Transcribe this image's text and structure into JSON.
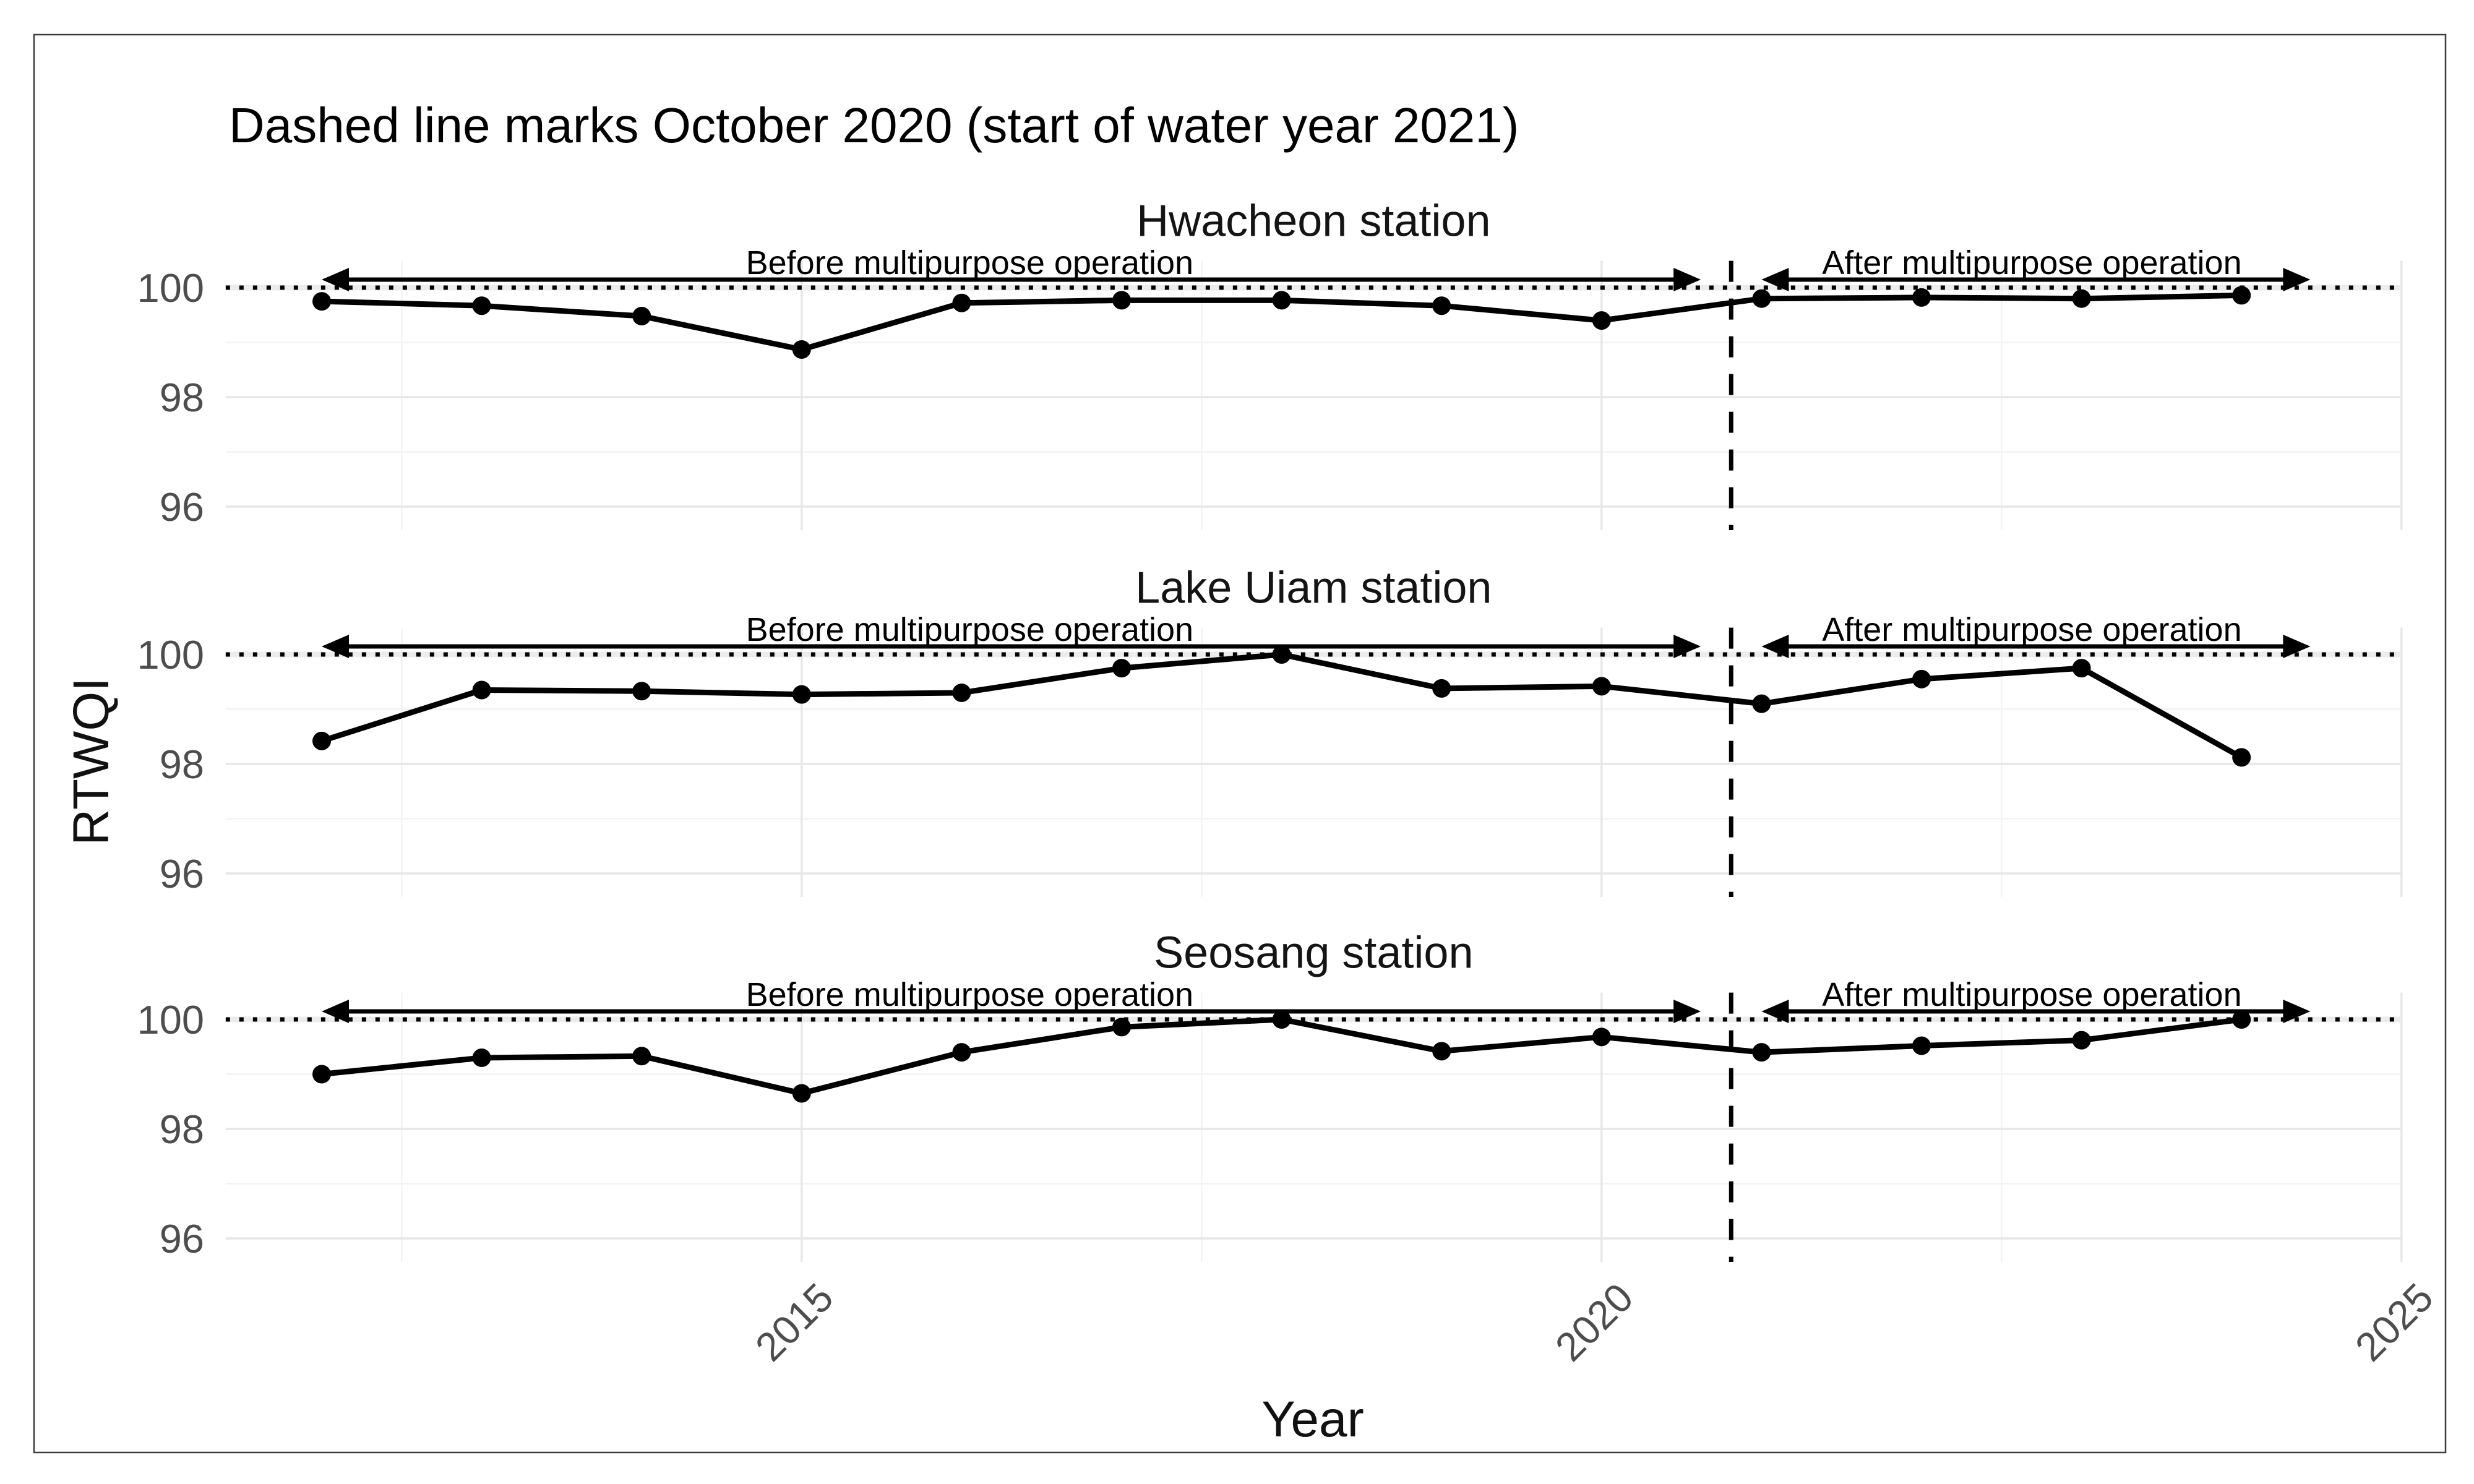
{
  "figure": {
    "title": "Dashed line marks October 2020 (start of water year 2021)",
    "x_axis_title": "Year",
    "y_axis_title": "RTWQI"
  },
  "colors": {
    "background": "#ffffff",
    "series": "#000000",
    "tick_label": "#4d4d4d",
    "grid_major": "#e7e7e7",
    "grid_minor": "#f3f3f3",
    "border": "#3d3d3d"
  },
  "chart_data": {
    "type": "line",
    "title": "Dashed line marks October 2020 (start of water year 2021)",
    "xlabel": "Year",
    "ylabel": "RTWQI",
    "x": [
      2012,
      2013,
      2014,
      2015,
      2016,
      2017,
      2018,
      2019,
      2020,
      2021,
      2022,
      2023,
      2024
    ],
    "x_tick_labels": [
      "2015",
      "2020",
      "2025"
    ],
    "x_ticks": [
      2015,
      2020,
      2025
    ],
    "y_tick_labels": [
      "100",
      "98",
      "96"
    ],
    "y_ticks": [
      100,
      98,
      96
    ],
    "xlim": [
      2011.4,
      2025.0
    ],
    "ylim": [
      95.57,
      100.49
    ],
    "grid": {
      "x_major": [
        2015,
        2020,
        2025
      ],
      "x_minor": [
        2012.5,
        2017.5,
        2022.5
      ],
      "y_major": [
        96,
        98,
        100
      ],
      "y_minor": [
        97,
        99
      ],
      "grid_on": true
    },
    "reference_line_y": 100,
    "dashed_vline_x": 2020.81,
    "panels": [
      {
        "title": "Hwacheon station",
        "values": [
          99.75,
          99.67,
          99.48,
          98.87,
          99.72,
          99.77,
          99.77,
          99.67,
          99.4,
          99.8,
          99.82,
          99.8,
          99.86
        ]
      },
      {
        "title": "Lake Uiam station",
        "values": [
          98.42,
          99.35,
          99.33,
          99.27,
          99.3,
          99.75,
          100.0,
          99.38,
          99.42,
          99.1,
          99.55,
          99.75,
          98.12
        ]
      },
      {
        "title": "Seosang station",
        "values": [
          99.0,
          99.3,
          99.33,
          98.65,
          99.4,
          99.86,
          100.0,
          99.42,
          99.68,
          99.4,
          99.52,
          99.62,
          100.0
        ]
      }
    ],
    "annotations": {
      "before": {
        "label": "Before multipurpose operation",
        "x_start": 2012.0,
        "x_end": 2020.62,
        "label_x": 2016.05
      },
      "after": {
        "label": "After multipurpose operation",
        "x_start": 2021.0,
        "x_end": 2024.43,
        "label_x": 2022.69
      },
      "arrow_y": 100.147,
      "label_y": 100.25,
      "legend_position": "none"
    }
  }
}
